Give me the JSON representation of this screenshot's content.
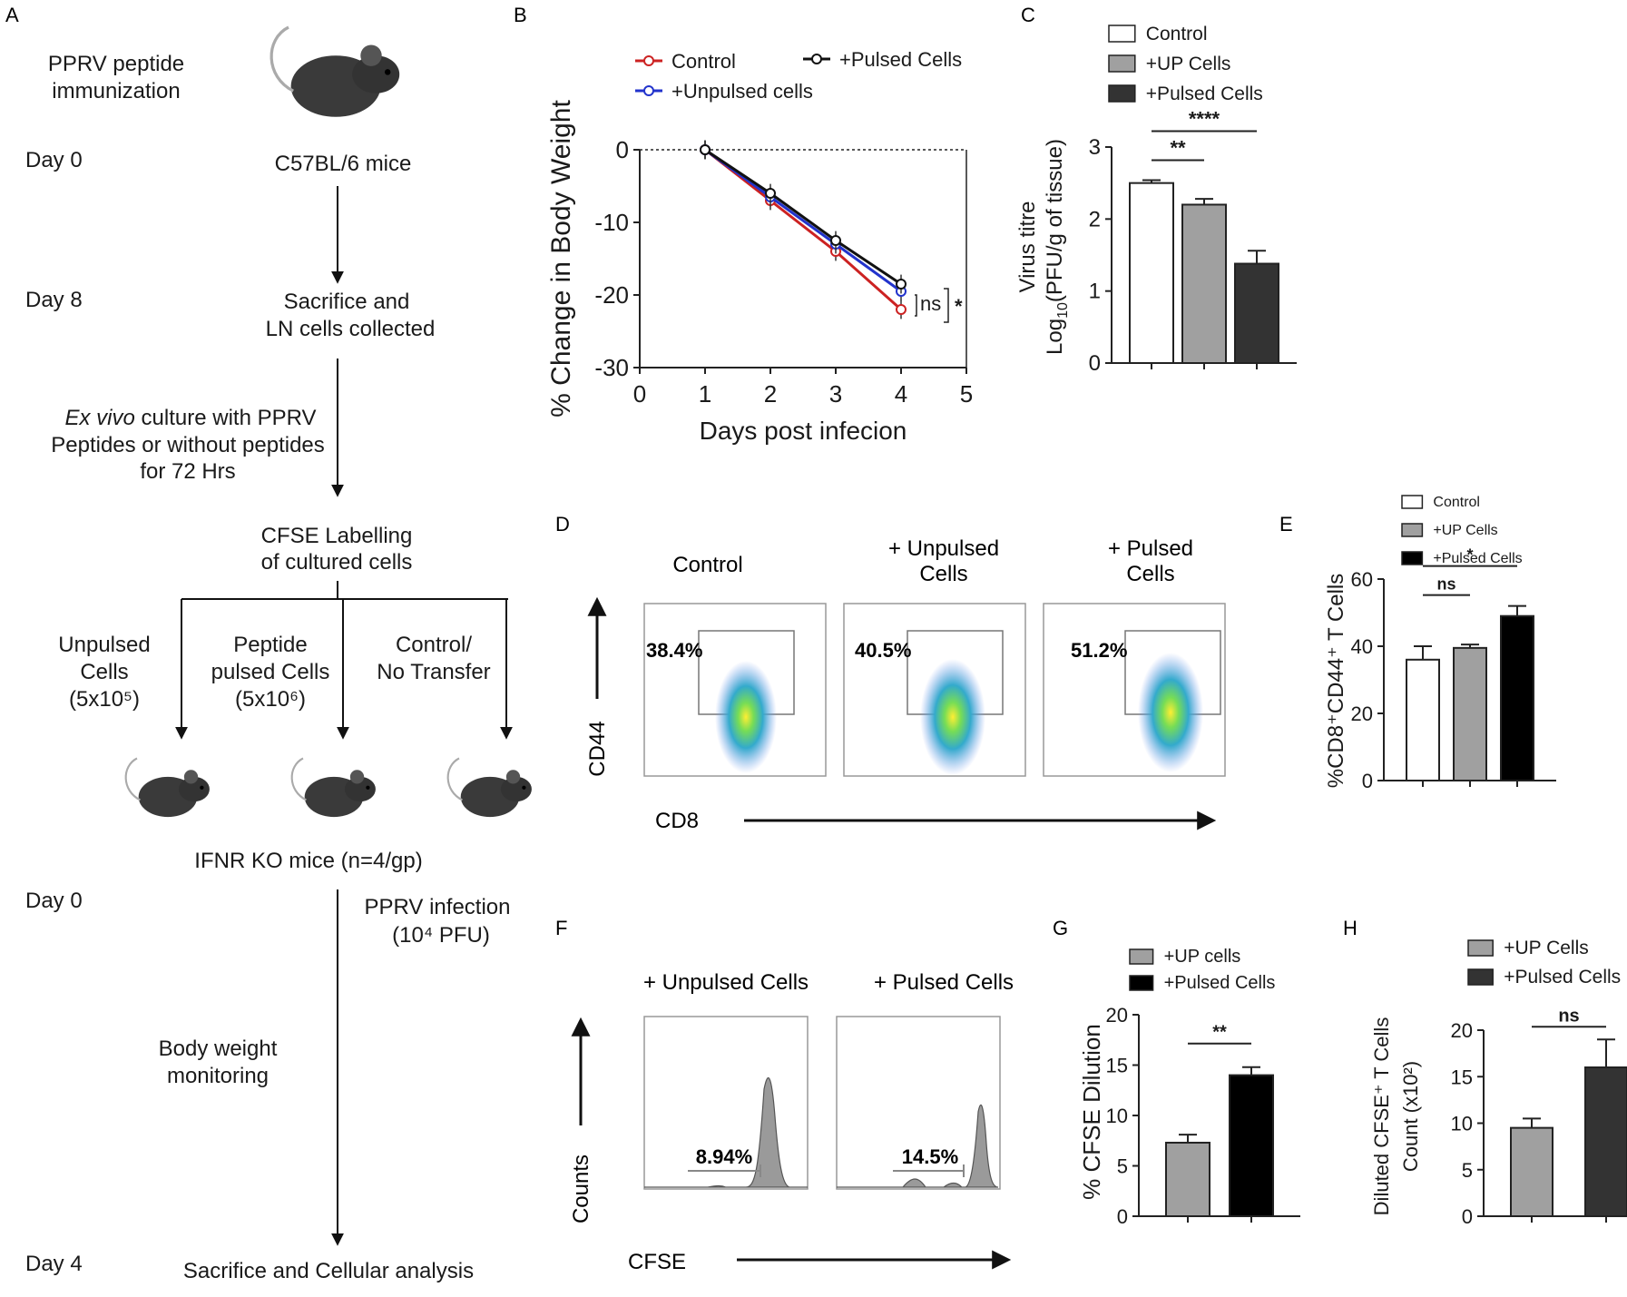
{
  "figure": {
    "panel_letters": {
      "a": "A",
      "b": "B",
      "c": "C",
      "d": "D",
      "e": "E",
      "f": "F",
      "g": "G",
      "h": "H"
    }
  },
  "schematic": {
    "title_line1": "PPRV peptide",
    "title_line2": "immunization",
    "day0_top": "Day 0",
    "mice_strain": "C57BL/6  mice",
    "day8": "Day 8",
    "sacrifice_line1": "Sacrifice and",
    "sacrifice_line2": "LN cells collected",
    "exvivo_italic": "Ex vivo",
    "exvivo_line1_rest": " culture with PPRV",
    "exvivo_line2": "Peptides or without peptides",
    "exvivo_line3": "for 72 Hrs",
    "cfse_line1": "CFSE Labelling",
    "cfse_line2": "of cultured cells",
    "branch1_line1": "Unpulsed",
    "branch1_line2": "Cells",
    "branch1_line3": "(5x10⁵)",
    "branch2_line1": "Peptide",
    "branch2_line2": "pulsed Cells",
    "branch2_line3": "(5x10⁶)",
    "branch3_line1": "Control/",
    "branch3_line2": "No Transfer",
    "recipients": "IFNR KO  mice (n=4/gp)",
    "day0_bottom": "Day 0",
    "infection_line1": "PPRV infection",
    "infection_line2": "(10⁴ PFU)",
    "monitor_line1": "Body weight",
    "monitor_line2": "monitoring",
    "day4": "Day 4",
    "final": "Sacrifice and Cellular analysis"
  },
  "facs_cd44": {
    "titles": [
      "Control",
      "+ Unpulsed",
      "Cells",
      "+ Pulsed",
      "Cells"
    ],
    "percents": [
      "38.4%",
      "40.5%",
      "51.2%"
    ],
    "y_label": "CD44",
    "x_label": "CD8"
  },
  "facs_cfse": {
    "titles": [
      "+ Unpulsed Cells",
      "+ Pulsed Cells"
    ],
    "percents": [
      "8.94%",
      "14.5%"
    ],
    "y_label": "Counts",
    "x_label": "CFSE"
  },
  "chart_data": [
    {
      "panel": "B",
      "type": "line",
      "xlabel": "Days post infecion",
      "ylabel": "% Change in Body Weight",
      "xlim": [
        0,
        5
      ],
      "ylim": [
        -30,
        0
      ],
      "xticks": [
        0,
        1,
        2,
        3,
        4,
        5
      ],
      "yticks": [
        0,
        -10,
        -20,
        -30
      ],
      "x": [
        1,
        2,
        3,
        4
      ],
      "series": [
        {
          "name": "Control",
          "color": "#cc2222",
          "values": [
            0,
            -7,
            -14,
            -22
          ]
        },
        {
          "name": "+Unpulsed cells",
          "color": "#2233cc",
          "values": [
            0,
            -6.5,
            -13,
            -19.5
          ]
        },
        {
          "name": "+Pulsed Cells",
          "color": "#111111",
          "values": [
            0,
            -6,
            -12.5,
            -18.5
          ]
        }
      ],
      "annotations": [
        "ns",
        "*"
      ]
    },
    {
      "panel": "C",
      "type": "bar",
      "categories": [
        "Control",
        "+UP Cells",
        "+Pulsed Cells"
      ],
      "values": [
        2.5,
        2.2,
        1.38
      ],
      "errors": [
        0.04,
        0.08,
        0.18
      ],
      "colors": [
        "#ffffff",
        "#a0a0a0",
        "#333333"
      ],
      "ylabel_line1": "Virus titre",
      "ylabel_line2_pre": "Log",
      "ylabel_line2_sub": "10",
      "ylabel_line2_post": "(PFU/g of tissue)",
      "ylim": [
        0,
        3
      ],
      "yticks": [
        0,
        1,
        2,
        3
      ],
      "significance": [
        {
          "from": 0,
          "to": 1,
          "label": "**"
        },
        {
          "from": 0,
          "to": 2,
          "label": "****"
        }
      ]
    },
    {
      "panel": "E",
      "type": "bar",
      "categories": [
        "Control",
        "+UP Cells",
        "+Pulsed Cells"
      ],
      "values": [
        36,
        39.5,
        49
      ],
      "errors": [
        4,
        1,
        3
      ],
      "colors": [
        "#ffffff",
        "#a0a0a0",
        "#000000"
      ],
      "ylabel": "%CD8⁺CD44⁺ T Cells",
      "ylim": [
        0,
        60
      ],
      "yticks": [
        0,
        20,
        40,
        60
      ],
      "significance": [
        {
          "from": 0,
          "to": 1,
          "label": "ns"
        },
        {
          "from": 0,
          "to": 2,
          "label": "*"
        }
      ]
    },
    {
      "panel": "G",
      "type": "bar",
      "categories": [
        "+UP cells",
        "+Pulsed Cells"
      ],
      "values": [
        7.3,
        14
      ],
      "errors": [
        0.8,
        0.8
      ],
      "colors": [
        "#a0a0a0",
        "#000000"
      ],
      "ylabel": "% CFSE Dilution",
      "ylim": [
        0,
        20
      ],
      "yticks": [
        0,
        5,
        10,
        15,
        20
      ],
      "significance": [
        {
          "from": 0,
          "to": 1,
          "label": "**"
        }
      ]
    },
    {
      "panel": "H",
      "type": "bar",
      "categories": [
        "+UP Cells",
        "+Pulsed Cells"
      ],
      "values": [
        9.5,
        16
      ],
      "errors": [
        1,
        3
      ],
      "colors": [
        "#a0a0a0",
        "#333333"
      ],
      "ylabel_line1": "Diluted CFSE⁺ T Cells",
      "ylabel_line2": "Count (x10²)",
      "ylim": [
        0,
        20
      ],
      "yticks": [
        0,
        5,
        10,
        15,
        20
      ],
      "significance": [
        {
          "from": 0,
          "to": 1,
          "label": "ns"
        }
      ]
    }
  ]
}
